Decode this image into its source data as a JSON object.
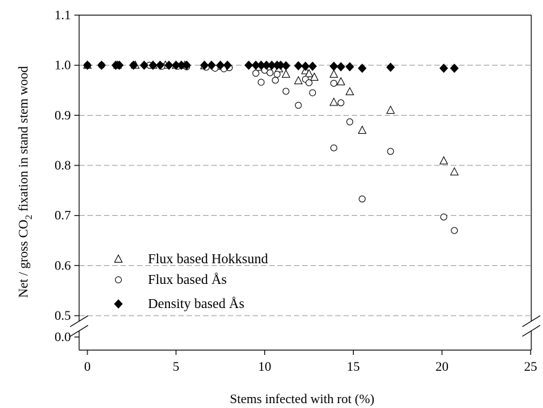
{
  "chart_data": {
    "type": "scatter",
    "title": "",
    "xlabel": "Stems infected with rot (%)",
    "ylabel": {
      "prefix": "Net / gross CO",
      "subscript": "2",
      "suffix": " fixation in stand stem wood"
    },
    "xlim": [
      0,
      25
    ],
    "ylim": [
      0,
      1.1
    ],
    "y_axis_break": [
      0.0,
      0.5
    ],
    "x_ticks": [
      0,
      5,
      10,
      15,
      20,
      25
    ],
    "x_tick_labels": [
      "0",
      "5",
      "10",
      "15",
      "20",
      "25"
    ],
    "y_ticks": [
      0.0,
      0.5,
      0.6,
      0.7,
      0.8,
      0.9,
      1.0,
      1.1
    ],
    "y_tick_labels": [
      "0.0",
      "0.5",
      "0.6",
      "0.7",
      "0.8",
      "0.9",
      "1.0",
      "1.1"
    ],
    "grid": "horizontal dashed",
    "legend_position": "bottom-left",
    "series": [
      {
        "name": "Flux based Hokksund",
        "marker": "triangle-open",
        "points": [
          [
            0,
            1.0
          ],
          [
            1.7,
            1.0
          ],
          [
            2.7,
            1.0
          ],
          [
            3.7,
            1.0
          ],
          [
            4.4,
            1.0
          ],
          [
            5.0,
            1.0
          ],
          [
            5.5,
            1.0
          ],
          [
            6.6,
            0.999
          ],
          [
            7.5,
            0.998
          ],
          [
            9.7,
            0.996
          ],
          [
            10.2,
            0.995
          ],
          [
            10.8,
            0.993
          ],
          [
            11.2,
            0.982
          ],
          [
            11.9,
            0.969
          ],
          [
            12.3,
            0.989
          ],
          [
            12.5,
            0.983
          ],
          [
            12.8,
            0.976
          ],
          [
            13.9,
            0.982
          ],
          [
            13.9,
            0.926
          ],
          [
            14.3,
            0.967
          ],
          [
            14.8,
            0.947
          ],
          [
            15.5,
            0.87
          ],
          [
            17.1,
            0.91
          ],
          [
            20.1,
            0.809
          ],
          [
            20.7,
            0.787
          ]
        ]
      },
      {
        "name": "Flux based Ås",
        "marker": "circle-open",
        "points": [
          [
            0,
            1.0
          ],
          [
            0.8,
            1.0
          ],
          [
            1.7,
            1.0
          ],
          [
            2.6,
            1.0
          ],
          [
            3.5,
            1.0
          ],
          [
            4.2,
            0.998
          ],
          [
            5.1,
            0.998
          ],
          [
            5.6,
            0.997
          ],
          [
            6.7,
            0.996
          ],
          [
            7.2,
            0.994
          ],
          [
            7.7,
            0.993
          ],
          [
            8.0,
            0.995
          ],
          [
            9.5,
            0.984
          ],
          [
            9.8,
            0.966
          ],
          [
            10.0,
            0.99
          ],
          [
            10.3,
            0.985
          ],
          [
            10.6,
            0.97
          ],
          [
            10.7,
            0.982
          ],
          [
            11.2,
            0.948
          ],
          [
            11.9,
            0.92
          ],
          [
            12.3,
            0.972
          ],
          [
            12.5,
            0.965
          ],
          [
            12.7,
            0.945
          ],
          [
            13.9,
            0.964
          ],
          [
            13.9,
            0.835
          ],
          [
            14.3,
            0.925
          ],
          [
            14.8,
            0.887
          ],
          [
            15.5,
            0.733
          ],
          [
            17.1,
            0.828
          ],
          [
            20.1,
            0.697
          ],
          [
            20.7,
            0.67
          ]
        ]
      },
      {
        "name": "Density based Ås",
        "marker": "diamond-filled",
        "points": [
          [
            0,
            1.0
          ],
          [
            0.8,
            1.0
          ],
          [
            1.6,
            1.0
          ],
          [
            1.8,
            1.0
          ],
          [
            2.6,
            1.0
          ],
          [
            3.2,
            1.0
          ],
          [
            3.7,
            1.0
          ],
          [
            4.1,
            1.0
          ],
          [
            4.6,
            1.0
          ],
          [
            5.0,
            1.0
          ],
          [
            5.3,
            1.0
          ],
          [
            5.6,
            1.0
          ],
          [
            6.6,
            1.0
          ],
          [
            7.0,
            1.0
          ],
          [
            7.5,
            1.0
          ],
          [
            7.9,
            1.0
          ],
          [
            9.1,
            1.0
          ],
          [
            9.5,
            1.0
          ],
          [
            9.8,
            1.0
          ],
          [
            10.1,
            1.0
          ],
          [
            10.4,
            1.0
          ],
          [
            10.7,
            1.0
          ],
          [
            10.9,
            1.0
          ],
          [
            11.2,
            0.999
          ],
          [
            11.9,
            0.999
          ],
          [
            12.3,
            0.998
          ],
          [
            12.7,
            0.998
          ],
          [
            13.9,
            0.998
          ],
          [
            14.3,
            0.997
          ],
          [
            14.8,
            0.997
          ],
          [
            15.5,
            0.994
          ],
          [
            17.1,
            0.996
          ],
          [
            20.1,
            0.994
          ],
          [
            20.7,
            0.994
          ]
        ]
      }
    ]
  }
}
